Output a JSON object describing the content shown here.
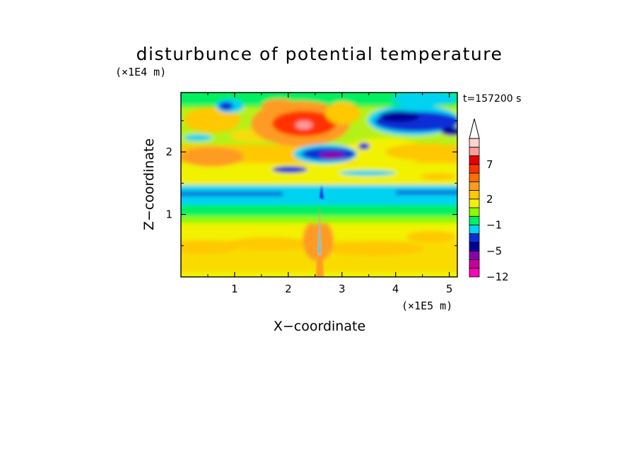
{
  "chart_data": {
    "type": "heatmap",
    "title": "disturbunce of potential temperature",
    "xlabel": "X−coordinate",
    "ylabel": "Z−coordinate",
    "x_unit": "(×1E5 m)",
    "y_unit": "(×1E4 m)",
    "time_label": "t=157200 s",
    "xlim": [
      0,
      5.15
    ],
    "ylim": [
      0,
      2.95
    ],
    "xticks": [
      1,
      2,
      3,
      4,
      5
    ],
    "yticks": [
      1,
      2
    ],
    "xtick_labels": [
      "1",
      "2",
      "3",
      "4",
      "5"
    ],
    "ytick_labels": [
      "1",
      "2"
    ],
    "colorbar": {
      "levels": [
        -12,
        -9,
        -7,
        -5,
        -4,
        -3,
        -1,
        0,
        1,
        2,
        3,
        4,
        5,
        7,
        8,
        9,
        10
      ],
      "labels": [
        {
          "value": 7,
          "text": "7"
        },
        {
          "value": 2,
          "text": "2"
        },
        {
          "value": -1,
          "text": "−1"
        },
        {
          "value": -5,
          "text": "−5"
        },
        {
          "value": -12,
          "text": "−12"
        }
      ],
      "colors": [
        "#ff00bb",
        "#c8009b",
        "#8c00aa",
        "#000099",
        "#0b2fd6",
        "#00d2f2",
        "#00f060",
        "#8cfa00",
        "#f2f200",
        "#ffc800",
        "#ff9b20",
        "#ff6e00",
        "#ff3200",
        "#e60000",
        "#ff9b9b",
        "#ffd2d2"
      ],
      "extend_top": true
    },
    "field_description": "Warm positive anomalies near the surface and at upper levels around x=1.8–2.6 (max ~7+), strong cold negative bands at z≈2.1–2.3 near x=2.3–3.1 and at z≈2.5 near x=3.7–5.15 (min ≈−5 to −7), a thin cold band near z≈1.3, and a narrow cold spike rising from the surface near x≈2.55."
  },
  "colors": {
    "background": "#ffffff",
    "axis": "#000000"
  }
}
